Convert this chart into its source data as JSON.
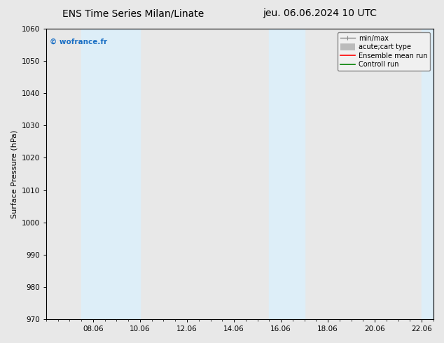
{
  "title_left": "ENS Time Series Milan/Linate",
  "title_right": "jeu. 06.06.2024 10 UTC",
  "ylabel": "Surface Pressure (hPa)",
  "ylim": [
    970,
    1060
  ],
  "yticks": [
    970,
    980,
    990,
    1000,
    1010,
    1020,
    1030,
    1040,
    1050,
    1060
  ],
  "xlim_start": 6.0,
  "xlim_end": 22.5,
  "xtick_labels": [
    "08.06",
    "10.06",
    "12.06",
    "14.06",
    "16.06",
    "18.06",
    "20.06",
    "22.06"
  ],
  "xtick_positions": [
    8.0,
    10.0,
    12.0,
    14.0,
    16.0,
    18.0,
    20.0,
    22.0
  ],
  "shaded_bands": [
    {
      "x_start": 7.5,
      "x_end": 10.0,
      "color": "#ddeef8"
    },
    {
      "x_start": 15.5,
      "x_end": 17.0,
      "color": "#ddeef8"
    },
    {
      "x_start": 22.0,
      "x_end": 22.5,
      "color": "#ddeef8"
    }
  ],
  "watermark_text": "© wofrance.fr",
  "watermark_color": "#1a6fc4",
  "background_color": "#e8e8e8",
  "plot_bg_color": "#e8e8e8",
  "legend_items": [
    {
      "label": "min/max",
      "color": "#888888",
      "lw": 1.0
    },
    {
      "label": "acute;cart type",
      "color": "#bbbbbb",
      "lw": 7
    },
    {
      "label": "Ensemble mean run",
      "color": "#ff0000",
      "lw": 1.2
    },
    {
      "label": "Controll run",
      "color": "#008000",
      "lw": 1.2
    }
  ],
  "title_fontsize": 10,
  "axis_label_fontsize": 8,
  "tick_fontsize": 7.5,
  "legend_fontsize": 7
}
